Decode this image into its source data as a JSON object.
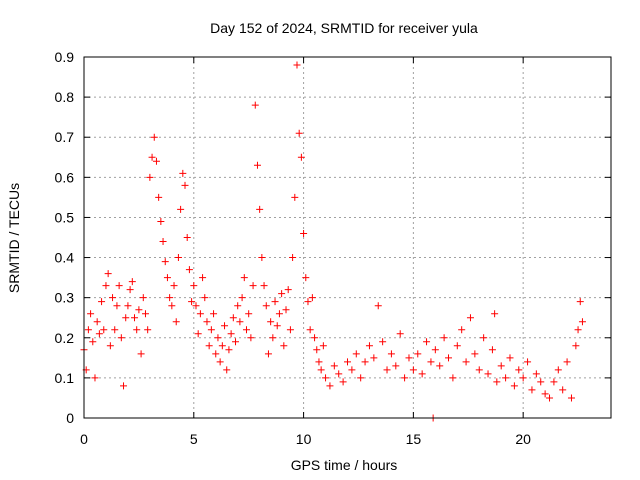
{
  "chart_data": {
    "type": "scatter",
    "title": "Day 152 of 2024, SRMTID for receiver yula",
    "xlabel": "GPS time / hours",
    "ylabel": "SRMTID / TECUs",
    "xlim": [
      0,
      24
    ],
    "ylim": [
      0,
      0.9
    ],
    "xticks": [
      "0",
      "5",
      "10",
      "15",
      "20"
    ],
    "xtick_values": [
      0,
      5,
      10,
      15,
      20
    ],
    "yticks": [
      "0",
      "0.1",
      "0.2",
      "0.3",
      "0.4",
      "0.5",
      "0.6",
      "0.7",
      "0.8",
      "0.9"
    ],
    "ytick_values": [
      0,
      0.1,
      0.2,
      0.3,
      0.4,
      0.5,
      0.6,
      0.7,
      0.8,
      0.9
    ],
    "grid": true,
    "marker": "+",
    "color": "#ff0000",
    "series": [
      {
        "name": "SRMTID",
        "x": [
          0.0,
          0.1,
          0.2,
          0.3,
          0.4,
          0.5,
          0.6,
          0.7,
          0.8,
          0.9,
          1.0,
          1.1,
          1.2,
          1.3,
          1.4,
          1.5,
          1.6,
          1.7,
          1.8,
          1.9,
          2.0,
          2.1,
          2.2,
          2.3,
          2.4,
          2.5,
          2.6,
          2.7,
          2.8,
          2.9,
          3.0,
          3.1,
          3.2,
          3.3,
          3.4,
          3.5,
          3.6,
          3.7,
          3.8,
          3.9,
          4.0,
          4.1,
          4.2,
          4.3,
          4.4,
          4.5,
          4.6,
          4.7,
          4.8,
          4.9,
          5.0,
          5.1,
          5.2,
          5.3,
          5.4,
          5.5,
          5.6,
          5.7,
          5.8,
          5.9,
          6.0,
          6.1,
          6.2,
          6.3,
          6.4,
          6.5,
          6.6,
          6.7,
          6.8,
          6.9,
          7.0,
          7.1,
          7.2,
          7.3,
          7.4,
          7.5,
          7.6,
          7.7,
          7.8,
          7.9,
          8.0,
          8.1,
          8.2,
          8.3,
          8.4,
          8.5,
          8.6,
          8.7,
          8.8,
          8.9,
          9.0,
          9.1,
          9.2,
          9.3,
          9.4,
          9.5,
          9.6,
          9.7,
          9.8,
          9.9,
          10.0,
          10.1,
          10.2,
          10.3,
          10.4,
          10.5,
          10.6,
          10.7,
          10.8,
          10.9,
          11.0,
          11.2,
          11.4,
          11.6,
          11.8,
          12.0,
          12.2,
          12.4,
          12.6,
          12.8,
          13.0,
          13.2,
          13.4,
          13.6,
          13.8,
          14.0,
          14.2,
          14.4,
          14.6,
          14.8,
          15.0,
          15.2,
          15.4,
          15.6,
          15.8,
          15.9,
          16.0,
          16.2,
          16.4,
          16.6,
          16.8,
          17.0,
          17.2,
          17.4,
          17.6,
          17.8,
          18.0,
          18.2,
          18.4,
          18.6,
          18.7,
          18.8,
          19.0,
          19.2,
          19.4,
          19.6,
          19.8,
          20.0,
          20.2,
          20.4,
          20.6,
          20.8,
          21.0,
          21.2,
          21.4,
          21.6,
          21.8,
          22.0,
          22.2,
          22.4,
          22.5,
          22.6,
          22.7
        ],
        "y": [
          0.17,
          0.12,
          0.22,
          0.26,
          0.19,
          0.1,
          0.24,
          0.21,
          0.29,
          0.22,
          0.33,
          0.36,
          0.18,
          0.3,
          0.22,
          0.28,
          0.33,
          0.2,
          0.08,
          0.25,
          0.28,
          0.32,
          0.34,
          0.25,
          0.22,
          0.27,
          0.16,
          0.3,
          0.26,
          0.22,
          0.6,
          0.65,
          0.7,
          0.64,
          0.55,
          0.49,
          0.44,
          0.39,
          0.35,
          0.3,
          0.28,
          0.33,
          0.24,
          0.4,
          0.52,
          0.61,
          0.58,
          0.45,
          0.37,
          0.29,
          0.33,
          0.28,
          0.21,
          0.26,
          0.35,
          0.3,
          0.24,
          0.18,
          0.22,
          0.26,
          0.16,
          0.2,
          0.14,
          0.18,
          0.23,
          0.12,
          0.17,
          0.21,
          0.25,
          0.19,
          0.28,
          0.24,
          0.3,
          0.35,
          0.22,
          0.26,
          0.2,
          0.33,
          0.78,
          0.63,
          0.52,
          0.4,
          0.33,
          0.28,
          0.16,
          0.24,
          0.2,
          0.29,
          0.23,
          0.26,
          0.31,
          0.18,
          0.27,
          0.32,
          0.22,
          0.4,
          0.55,
          0.88,
          0.71,
          0.65,
          0.46,
          0.35,
          0.29,
          0.22,
          0.3,
          0.2,
          0.17,
          0.14,
          0.12,
          0.18,
          0.1,
          0.08,
          0.13,
          0.11,
          0.09,
          0.14,
          0.12,
          0.16,
          0.1,
          0.14,
          0.18,
          0.15,
          0.28,
          0.19,
          0.12,
          0.16,
          0.13,
          0.21,
          0.1,
          0.15,
          0.12,
          0.16,
          0.11,
          0.19,
          0.14,
          0.0,
          0.17,
          0.13,
          0.2,
          0.15,
          0.1,
          0.18,
          0.22,
          0.14,
          0.25,
          0.16,
          0.12,
          0.2,
          0.11,
          0.17,
          0.26,
          0.09,
          0.13,
          0.1,
          0.15,
          0.08,
          0.12,
          0.1,
          0.14,
          0.07,
          0.11,
          0.09,
          0.06,
          0.05,
          0.09,
          0.12,
          0.07,
          0.14,
          0.05,
          0.18,
          0.22,
          0.29,
          0.24
        ]
      }
    ]
  }
}
